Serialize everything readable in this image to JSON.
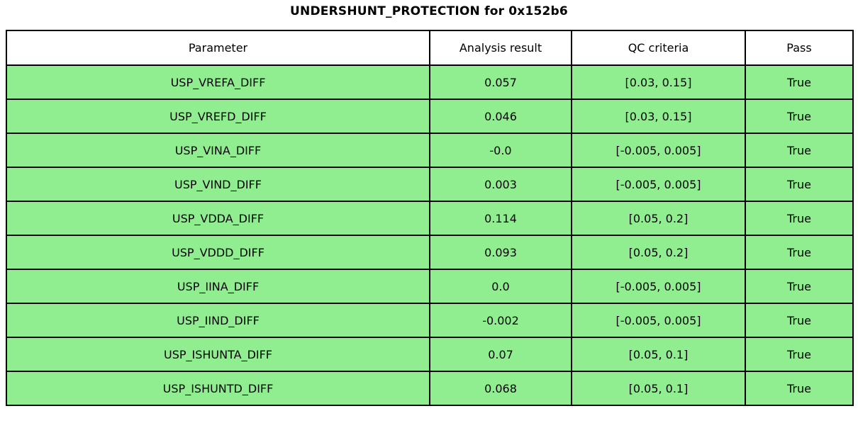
{
  "title": "UNDERSHUNT_PROTECTION for 0x152b6",
  "colors": {
    "row_bg": "#90EE90",
    "header_bg": "#FFFFFF",
    "border": "#000000",
    "text": "#000000",
    "page_bg": "#FFFFFF"
  },
  "chart_data": {
    "type": "table",
    "title": "UNDERSHUNT_PROTECTION for 0x152b6",
    "columns": [
      "Parameter",
      "Analysis result",
      "QC criteria",
      "Pass"
    ],
    "rows": [
      [
        "USP_VREFA_DIFF",
        "0.057",
        "[0.03, 0.15]",
        "True"
      ],
      [
        "USP_VREFD_DIFF",
        "0.046",
        "[0.03, 0.15]",
        "True"
      ],
      [
        "USP_VINA_DIFF",
        "-0.0",
        "[-0.005, 0.005]",
        "True"
      ],
      [
        "USP_VIND_DIFF",
        "0.003",
        "[-0.005, 0.005]",
        "True"
      ],
      [
        "USP_VDDA_DIFF",
        "0.114",
        "[0.05, 0.2]",
        "True"
      ],
      [
        "USP_VDDD_DIFF",
        "0.093",
        "[0.05, 0.2]",
        "True"
      ],
      [
        "USP_IINA_DIFF",
        "0.0",
        "[-0.005, 0.005]",
        "True"
      ],
      [
        "USP_IIND_DIFF",
        "-0.002",
        "[-0.005, 0.005]",
        "True"
      ],
      [
        "USP_ISHUNTA_DIFF",
        "0.07",
        "[0.05, 0.1]",
        "True"
      ],
      [
        "USP_ISHUNTD_DIFF",
        "0.068",
        "[0.05, 0.1]",
        "True"
      ]
    ],
    "layout": {
      "grid": true,
      "all_rows_pass": true,
      "pass_row_color": "#90EE90",
      "header_row_color": "#FFFFFF"
    }
  }
}
